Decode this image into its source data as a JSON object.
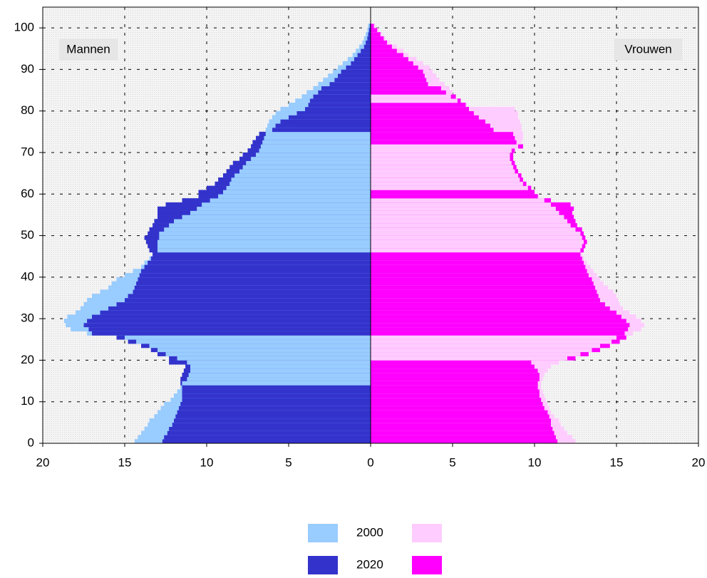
{
  "chart_data": {
    "type": "pyramid",
    "annotations": [
      "Mannen",
      "Vrouwen"
    ],
    "xlim": [
      -20,
      20
    ],
    "xticks": [
      {
        "value": -20,
        "label": "20"
      },
      {
        "value": -15,
        "label": "15"
      },
      {
        "value": -10,
        "label": "10"
      },
      {
        "value": -5,
        "label": "5"
      },
      0,
      5,
      10,
      15,
      20
    ],
    "ylim": [
      0,
      105
    ],
    "yticks": [
      0,
      10,
      20,
      30,
      40,
      50,
      60,
      70,
      80,
      90,
      100
    ],
    "grid": true,
    "y": [
      0,
      1,
      2,
      3,
      4,
      5,
      6,
      7,
      8,
      9,
      10,
      11,
      12,
      13,
      14,
      15,
      16,
      17,
      18,
      19,
      20,
      21,
      22,
      23,
      24,
      25,
      26,
      27,
      28,
      29,
      30,
      31,
      32,
      33,
      34,
      35,
      36,
      37,
      38,
      39,
      40,
      41,
      42,
      43,
      44,
      45,
      46,
      47,
      48,
      49,
      50,
      51,
      52,
      53,
      54,
      55,
      56,
      57,
      58,
      59,
      60,
      61,
      62,
      63,
      64,
      65,
      66,
      67,
      68,
      69,
      70,
      71,
      72,
      73,
      74,
      75,
      76,
      77,
      78,
      79,
      80,
      81,
      82,
      83,
      84,
      85,
      86,
      87,
      88,
      89,
      90,
      91,
      92,
      93,
      94,
      95,
      96,
      97,
      98,
      99,
      100
    ],
    "series": [
      {
        "name": "2000",
        "color": "#99ccff",
        "side": "left",
        "values": [
          14.4,
          14.2,
          14,
          13.8,
          13.6,
          13.5,
          13.2,
          13,
          12.8,
          12.6,
          12.2,
          12,
          11.8,
          11.6,
          11.5,
          11.2,
          11.1,
          11,
          11,
          11.2,
          11.8,
          12.5,
          13,
          13.5,
          14.3,
          15,
          17.3,
          18.3,
          18.6,
          18.7,
          18.5,
          18,
          17.7,
          17.5,
          17.3,
          17,
          16.5,
          16,
          15.8,
          15.5,
          15,
          14.5,
          14,
          13.8,
          13.5,
          13.3,
          13,
          13,
          13,
          12.9,
          12.9,
          12.6,
          12.3,
          12,
          11.5,
          11,
          10.6,
          10.3,
          9.8,
          9.3,
          9,
          8.8,
          8.6,
          8.5,
          8.3,
          8,
          7.8,
          7.6,
          7.3,
          7,
          6.8,
          6.7,
          6.6,
          6.5,
          6.4,
          6.4,
          6.3,
          6.2,
          6,
          5.8,
          5.5,
          5,
          4.6,
          4.2,
          3.9,
          3.5,
          3.2,
          2.9,
          2.6,
          2.3,
          2,
          1.7,
          1.4,
          1.1,
          0.9,
          0.7,
          0.5,
          0.4,
          0.3,
          0.2,
          0.15
        ]
      },
      {
        "name": "2020",
        "color": "#3333cc",
        "side": "left",
        "values": [
          12.7,
          12.6,
          12.4,
          12.3,
          12.1,
          12,
          11.9,
          11.8,
          11.7,
          11.6,
          11.5,
          11.5,
          11.5,
          11.5,
          11.6,
          11.6,
          11.5,
          11.4,
          11.3,
          12.3,
          12.3,
          13,
          13.4,
          14,
          14.8,
          15.5,
          17,
          17.2,
          17.5,
          17.3,
          17,
          16.5,
          16,
          15.5,
          15,
          14.8,
          14.5,
          14.4,
          14.3,
          14.2,
          14.1,
          14,
          13.8,
          13.6,
          13.4,
          13.3,
          13.5,
          13.6,
          13.7,
          13.8,
          13.6,
          13.5,
          13.3,
          13.2,
          13,
          13,
          13,
          12.5,
          11.5,
          10.5,
          10.5,
          10,
          9.5,
          9.3,
          9,
          8.8,
          8.6,
          8.4,
          8,
          7.8,
          7.5,
          7.3,
          7.2,
          7,
          6.8,
          6,
          5.8,
          5.5,
          5,
          4.5,
          4,
          3.8,
          3.7,
          3.5,
          3.2,
          3,
          2.5,
          2.2,
          2,
          1.8,
          1.5,
          1.2,
          1,
          0.8,
          0.6,
          0.4,
          0.3,
          0.2,
          0.15,
          0.1,
          0.05
        ]
      },
      {
        "color": "#ffccff",
        "side": "right",
        "values": [
          12.5,
          12.3,
          12,
          11.8,
          11.6,
          11.5,
          11.2,
          11,
          10.9,
          10.8,
          10.7,
          10.6,
          10.5,
          10.4,
          10.4,
          10.5,
          10.6,
          10.8,
          11,
          11.5,
          12,
          12.8,
          13.5,
          14,
          14.7,
          15,
          16,
          16.5,
          16.7,
          16.5,
          16.2,
          15.8,
          15.4,
          15.2,
          15.1,
          15,
          14.8,
          14.5,
          14.2,
          14,
          13.8,
          13.6,
          13.4,
          13.2,
          13,
          12.9,
          12.8,
          12.9,
          13,
          12.9,
          12.8,
          12.5,
          12.2,
          12,
          11.8,
          11.5,
          11.3,
          11,
          10.6,
          10.3,
          10,
          9.6,
          9.3,
          9.1,
          9,
          8.8,
          8.7,
          8.6,
          8.5,
          8.5,
          8.6,
          9,
          9.2,
          9.3,
          9.3,
          9.2,
          9.2,
          9.1,
          9,
          9,
          8.8,
          5.9,
          5.3,
          4.9,
          5,
          4.8,
          4.5,
          4.2,
          4,
          3.8,
          3.6,
          3.2,
          2.8,
          2.3,
          2,
          1.6,
          1.2,
          0.9,
          0.7,
          0.5,
          0.3
        ]
      },
      {
        "color": "#ff00ff",
        "side": "right",
        "values": [
          11.4,
          11.3,
          11.2,
          11.1,
          11,
          11,
          10.9,
          10.8,
          10.6,
          10.5,
          10.4,
          10.3,
          10.3,
          10.2,
          10.2,
          10.3,
          10.3,
          10.2,
          10,
          9.8,
          12.5,
          13.3,
          14,
          14.6,
          15.2,
          15.6,
          15.5,
          15.7,
          15.8,
          15.6,
          15.3,
          15,
          14.6,
          14.3,
          14,
          13.9,
          13.8,
          13.7,
          13.6,
          13.5,
          13.3,
          13.2,
          13.1,
          13,
          12.9,
          12.8,
          13,
          13.1,
          13.2,
          13.1,
          13,
          12.9,
          12.6,
          12.5,
          12.4,
          12.3,
          12.4,
          12.2,
          11,
          10.2,
          10,
          9.8,
          9.5,
          9.3,
          9.2,
          9,
          8.9,
          8.8,
          8.7,
          8.7,
          8.8,
          9.3,
          8.9,
          8.8,
          8.7,
          7.5,
          7.3,
          7,
          6.6,
          6.3,
          6,
          5.8,
          5.5,
          5.2,
          4.6,
          4.3,
          3.5,
          3.4,
          3.3,
          3.2,
          2.9,
          2.6,
          2.3,
          2,
          1.6,
          1.3,
          1,
          0.8,
          0.6,
          0.4,
          0.2
        ]
      }
    ]
  }
}
